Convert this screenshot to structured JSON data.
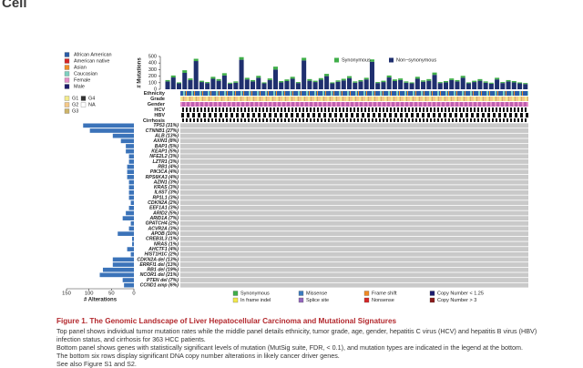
{
  "header": {
    "logo": "Cell"
  },
  "legend_left": {
    "ethnicity": [
      {
        "label": "African American",
        "color": "#2b5da8"
      },
      {
        "label": "American native",
        "color": "#d62728"
      },
      {
        "label": "Asian",
        "color": "#f08f2a"
      },
      {
        "label": "Caucasian",
        "color": "#7fd0c0"
      },
      {
        "label": "Female",
        "color": "#e58fc8"
      },
      {
        "label": "Male",
        "color": "#1c1c6a"
      }
    ],
    "grade": [
      {
        "label": "G1",
        "color": "#f3eb8e"
      },
      {
        "label": "G4",
        "color": "#333333"
      },
      {
        "label": "G2",
        "color": "#f5c98a"
      },
      {
        "label": "NA",
        "color": "#ffffff"
      },
      {
        "label": "G3",
        "color": "#cdb46a"
      }
    ]
  },
  "tracks": [
    "Ethnicity",
    "Grade",
    "Gender",
    "HCV",
    "HBV",
    "Cirrhosis"
  ],
  "chart_data": [
    {
      "type": "bar",
      "ylabel": "# Mutations",
      "ylim": [
        0,
        500
      ],
      "yticks": [
        0,
        100,
        200,
        300,
        400,
        500
      ],
      "series": [
        {
          "name": "Synonymous",
          "color": "#3fae49",
          "values": [
            20,
            30,
            15,
            40,
            25,
            35,
            20,
            15,
            30,
            25,
            35,
            15,
            20,
            40,
            25,
            20,
            30,
            15,
            25,
            45,
            20,
            25,
            30,
            15,
            40,
            25,
            20,
            25,
            35,
            15,
            20,
            25,
            30,
            20,
            20,
            25,
            35,
            15,
            20,
            30,
            25,
            25,
            20,
            15,
            30,
            20,
            25,
            35,
            15,
            20,
            25,
            20,
            30,
            15,
            20,
            25,
            20,
            15,
            25,
            15,
            20,
            20,
            15,
            15
          ]
        },
        {
          "name": "Non−synonymous",
          "color": "#1f2f6e",
          "values": [
            120,
            180,
            90,
            250,
            140,
            430,
            110,
            95,
            160,
            130,
            210,
            85,
            100,
            450,
            150,
            120,
            175,
            90,
            140,
            300,
            105,
            125,
            160,
            95,
            440,
            130,
            110,
            145,
            200,
            90,
            115,
            135,
            170,
            100,
            120,
            150,
            420,
            95,
            110,
            180,
            125,
            140,
            100,
            90,
            160,
            115,
            130,
            220,
            95,
            105,
            140,
            120,
            175,
            90,
            110,
            130,
            100,
            85,
            150,
            95,
            120,
            105,
            90,
            80
          ]
        }
      ]
    },
    {
      "type": "barh",
      "xlabel": "# Alterations",
      "xlim": [
        0,
        150
      ],
      "xticks": [
        0,
        50,
        100,
        150
      ],
      "color": "#3b73b9",
      "categories": [
        "TP53 (31%)",
        "CTNNB1 (27%)",
        "ALB (13%)",
        "AXIN1 (8%)",
        "BAP1 (5%)",
        "KEAP1 (5%)",
        "NFE2L2 (3%)",
        "LZTR1 (3%)",
        "RB1 (4%)",
        "PIK3CA (4%)",
        "RPS6KA3 (4%)",
        "AZIN1 (3%)",
        "KRAS (3%)",
        "IL6ST (3%)",
        "RP1L1 (3%)",
        "CDKN2A (2%)",
        "EEF1A1 (3%)",
        "ARID2 (5%)",
        "ARID1A (7%)",
        "GPATCH4 (2%)",
        "ACVR2A (3%)",
        "APOB (10%)",
        "CREB3L3 (1%)",
        "NRAS (1%)",
        "AHCTF1 (4%)",
        "HIST1H1C (2%)",
        "CDKN2A del (13%)",
        "ERRFI1 del (13%)",
        "RB1 del (19%)",
        "NCOR1 del (21%)",
        "PTEN del (7%)",
        "CCND1 amp (6%)"
      ],
      "values": [
        113,
        98,
        47,
        29,
        18,
        18,
        11,
        11,
        15,
        15,
        15,
        11,
        11,
        11,
        11,
        7,
        11,
        18,
        25,
        7,
        11,
        36,
        4,
        4,
        15,
        7,
        47,
        47,
        69,
        76,
        25,
        22
      ]
    }
  ],
  "legend_bottom": [
    {
      "label": "Synonymous",
      "color": "#3fae49"
    },
    {
      "label": "In frame indel",
      "color": "#f2e84b"
    },
    {
      "label": "Missense",
      "color": "#3b7bbf"
    },
    {
      "label": "Splice site",
      "color": "#9467bd"
    },
    {
      "label": "Frame shift",
      "color": "#f08a24"
    },
    {
      "label": "Nonsense",
      "color": "#d62728"
    },
    {
      "label": "Copy Number < 1.25",
      "color": "#1a1a6e"
    },
    {
      "label": "Copy Number > 3",
      "color": "#8b1a1a"
    }
  ],
  "caption": {
    "title": "Figure 1. The Genomic Landscape of Liver Hepatocellular Carcinoma and Mutational Signatures",
    "paragraphs": [
      "Top panel shows individual tumor mutation rates while the middle panel details ethnicity, tumor grade, age, gender, hepatitis C virus (HCV) and hepatitis B virus (HBV) infection status, and cirrhosis for 363 HCC patients.",
      "Bottom panel shows genes with statistically significant levels of mutation (MutSig suite, FDR, < 0.1), and mutation types are indicated in the legend at the bottom.",
      "The bottom six rows display significant DNA copy number alterations in likely cancer driver genes.",
      "See also Figure S1 and S2."
    ]
  }
}
